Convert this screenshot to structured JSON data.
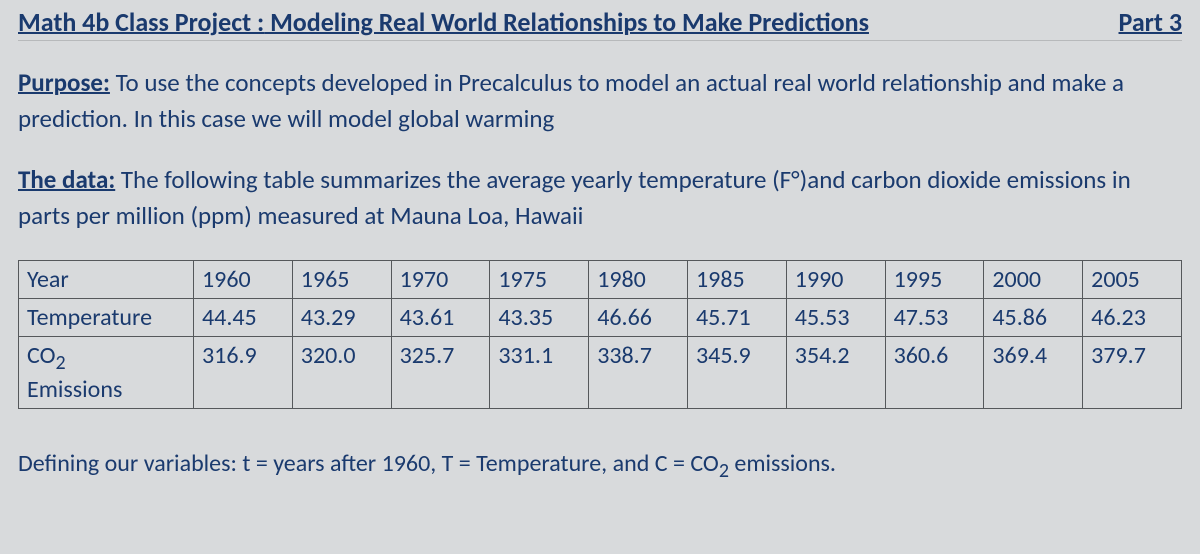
{
  "header": {
    "title_prefix": "Math 4b Class Project :",
    "title_main": " Modeling Real World Relationships to Make Predictions",
    "part_label": "Part 3"
  },
  "purpose": {
    "label": "Purpose:",
    "text": " To use the concepts developed in Precalculus to model an actual real world relationship and make a prediction.  In this case we will model global warming"
  },
  "data_section": {
    "label": "The data:",
    "text_before_unit": " The following table summarizes the average yearly temperature (F",
    "degree": "°",
    "text_after_unit": ")and carbon dioxide emissions in parts per million (ppm) measured at Mauna Loa, Hawaii"
  },
  "table": {
    "row_headers": {
      "year": "Year",
      "temperature": "Temperature",
      "co2_line1": "CO",
      "co2_sub": "2",
      "co2_line2": "Emissions"
    },
    "columns": [
      "1960",
      "1965",
      "1970",
      "1975",
      "1980",
      "1985",
      "1990",
      "1995",
      "2000",
      "2005"
    ],
    "temperature": [
      "44.45",
      "43.29",
      "43.61",
      "43.35",
      "46.66",
      "45.71",
      "45.53",
      "47.53",
      "45.86",
      "46.23"
    ],
    "co2": [
      "316.9",
      "320.0",
      "325.7",
      "331.1",
      "338.7",
      "345.9",
      "354.2",
      "360.6",
      "369.4",
      "379.7"
    ],
    "border_color": "#55585b",
    "text_color": "#1a3a6e",
    "background_color": "#d8dadc",
    "font_size_pt": 24
  },
  "defining": {
    "text_before_sub": "Defining our variables:  t = years after 1960, T = Temperature, and C = CO",
    "sub": "2",
    "text_after_sub": " emissions."
  },
  "colors": {
    "page_background": "#d8dadc",
    "text": "#1a3a6e"
  }
}
